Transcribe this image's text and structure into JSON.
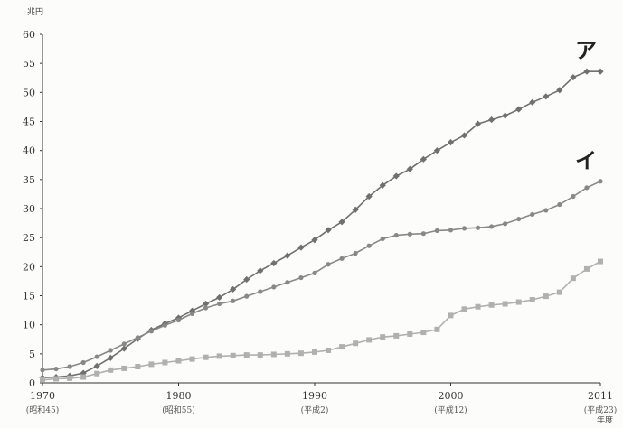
{
  "chart_data": {
    "type": "line",
    "title": "",
    "xlabel": "",
    "ylabel": "",
    "y_unit": "兆円",
    "x_unit": "年度",
    "xlim": [
      1970,
      2011
    ],
    "ylim": [
      0,
      60
    ],
    "grid": false,
    "legend": "none",
    "y_ticks": [
      0,
      5,
      10,
      15,
      20,
      25,
      30,
      35,
      40,
      45,
      50,
      55,
      60
    ],
    "x_ticks": [
      {
        "value": 1970,
        "label": "1970",
        "sub": "(昭和45)"
      },
      {
        "value": 1980,
        "label": "1980",
        "sub": "(昭和55)"
      },
      {
        "value": 1990,
        "label": "1990",
        "sub": "(平成2)"
      },
      {
        "value": 2000,
        "label": "2000",
        "sub": "(平成12)"
      },
      {
        "value": 2011,
        "label": "2011",
        "sub": "(平成23)"
      }
    ],
    "x": [
      1970,
      1971,
      1972,
      1973,
      1974,
      1975,
      1976,
      1977,
      1978,
      1979,
      1980,
      1981,
      1982,
      1983,
      1984,
      1985,
      1986,
      1987,
      1988,
      1989,
      1990,
      1991,
      1992,
      1993,
      1994,
      1995,
      1996,
      1997,
      1998,
      1999,
      2000,
      2001,
      2002,
      2003,
      2004,
      2005,
      2006,
      2007,
      2008,
      2009,
      2010,
      2011
    ],
    "series": [
      {
        "name": "ア",
        "color": "#707070",
        "marker": "diamond",
        "values": [
          0.9,
          1.0,
          1.2,
          1.7,
          2.9,
          4.3,
          5.9,
          7.6,
          9.1,
          10.2,
          11.2,
          12.4,
          13.6,
          14.7,
          16.1,
          17.8,
          19.3,
          20.6,
          21.9,
          23.3,
          24.6,
          26.3,
          27.7,
          29.8,
          32.1,
          34.0,
          35.6,
          36.8,
          38.5,
          40.0,
          41.4,
          42.6,
          44.6,
          45.3,
          46.0,
          47.1,
          48.3,
          49.3,
          50.4,
          52.6,
          53.6,
          53.6
        ]
      },
      {
        "name": "イ",
        "color": "#888888",
        "marker": "circle",
        "values": [
          2.2,
          2.4,
          2.8,
          3.5,
          4.5,
          5.6,
          6.7,
          7.8,
          8.9,
          9.9,
          10.8,
          11.9,
          12.9,
          13.6,
          14.1,
          14.9,
          15.7,
          16.5,
          17.3,
          18.1,
          18.9,
          20.4,
          21.4,
          22.3,
          23.6,
          24.8,
          25.4,
          25.6,
          25.7,
          26.2,
          26.3,
          26.6,
          26.7,
          26.9,
          27.4,
          28.2,
          29.0,
          29.7,
          30.7,
          32.1,
          33.6,
          34.7
        ]
      },
      {
        "name": "",
        "color": "#b0b0b0",
        "marker": "square",
        "values": [
          0.5,
          0.7,
          0.8,
          1.0,
          1.6,
          2.2,
          2.5,
          2.8,
          3.2,
          3.5,
          3.8,
          4.1,
          4.4,
          4.6,
          4.7,
          4.8,
          4.8,
          4.9,
          5.0,
          5.1,
          5.3,
          5.6,
          6.2,
          6.8,
          7.4,
          7.9,
          8.1,
          8.4,
          8.7,
          9.2,
          11.6,
          12.7,
          13.1,
          13.4,
          13.6,
          13.9,
          14.3,
          14.9,
          15.6,
          18.0,
          19.6,
          20.9
        ]
      }
    ]
  }
}
